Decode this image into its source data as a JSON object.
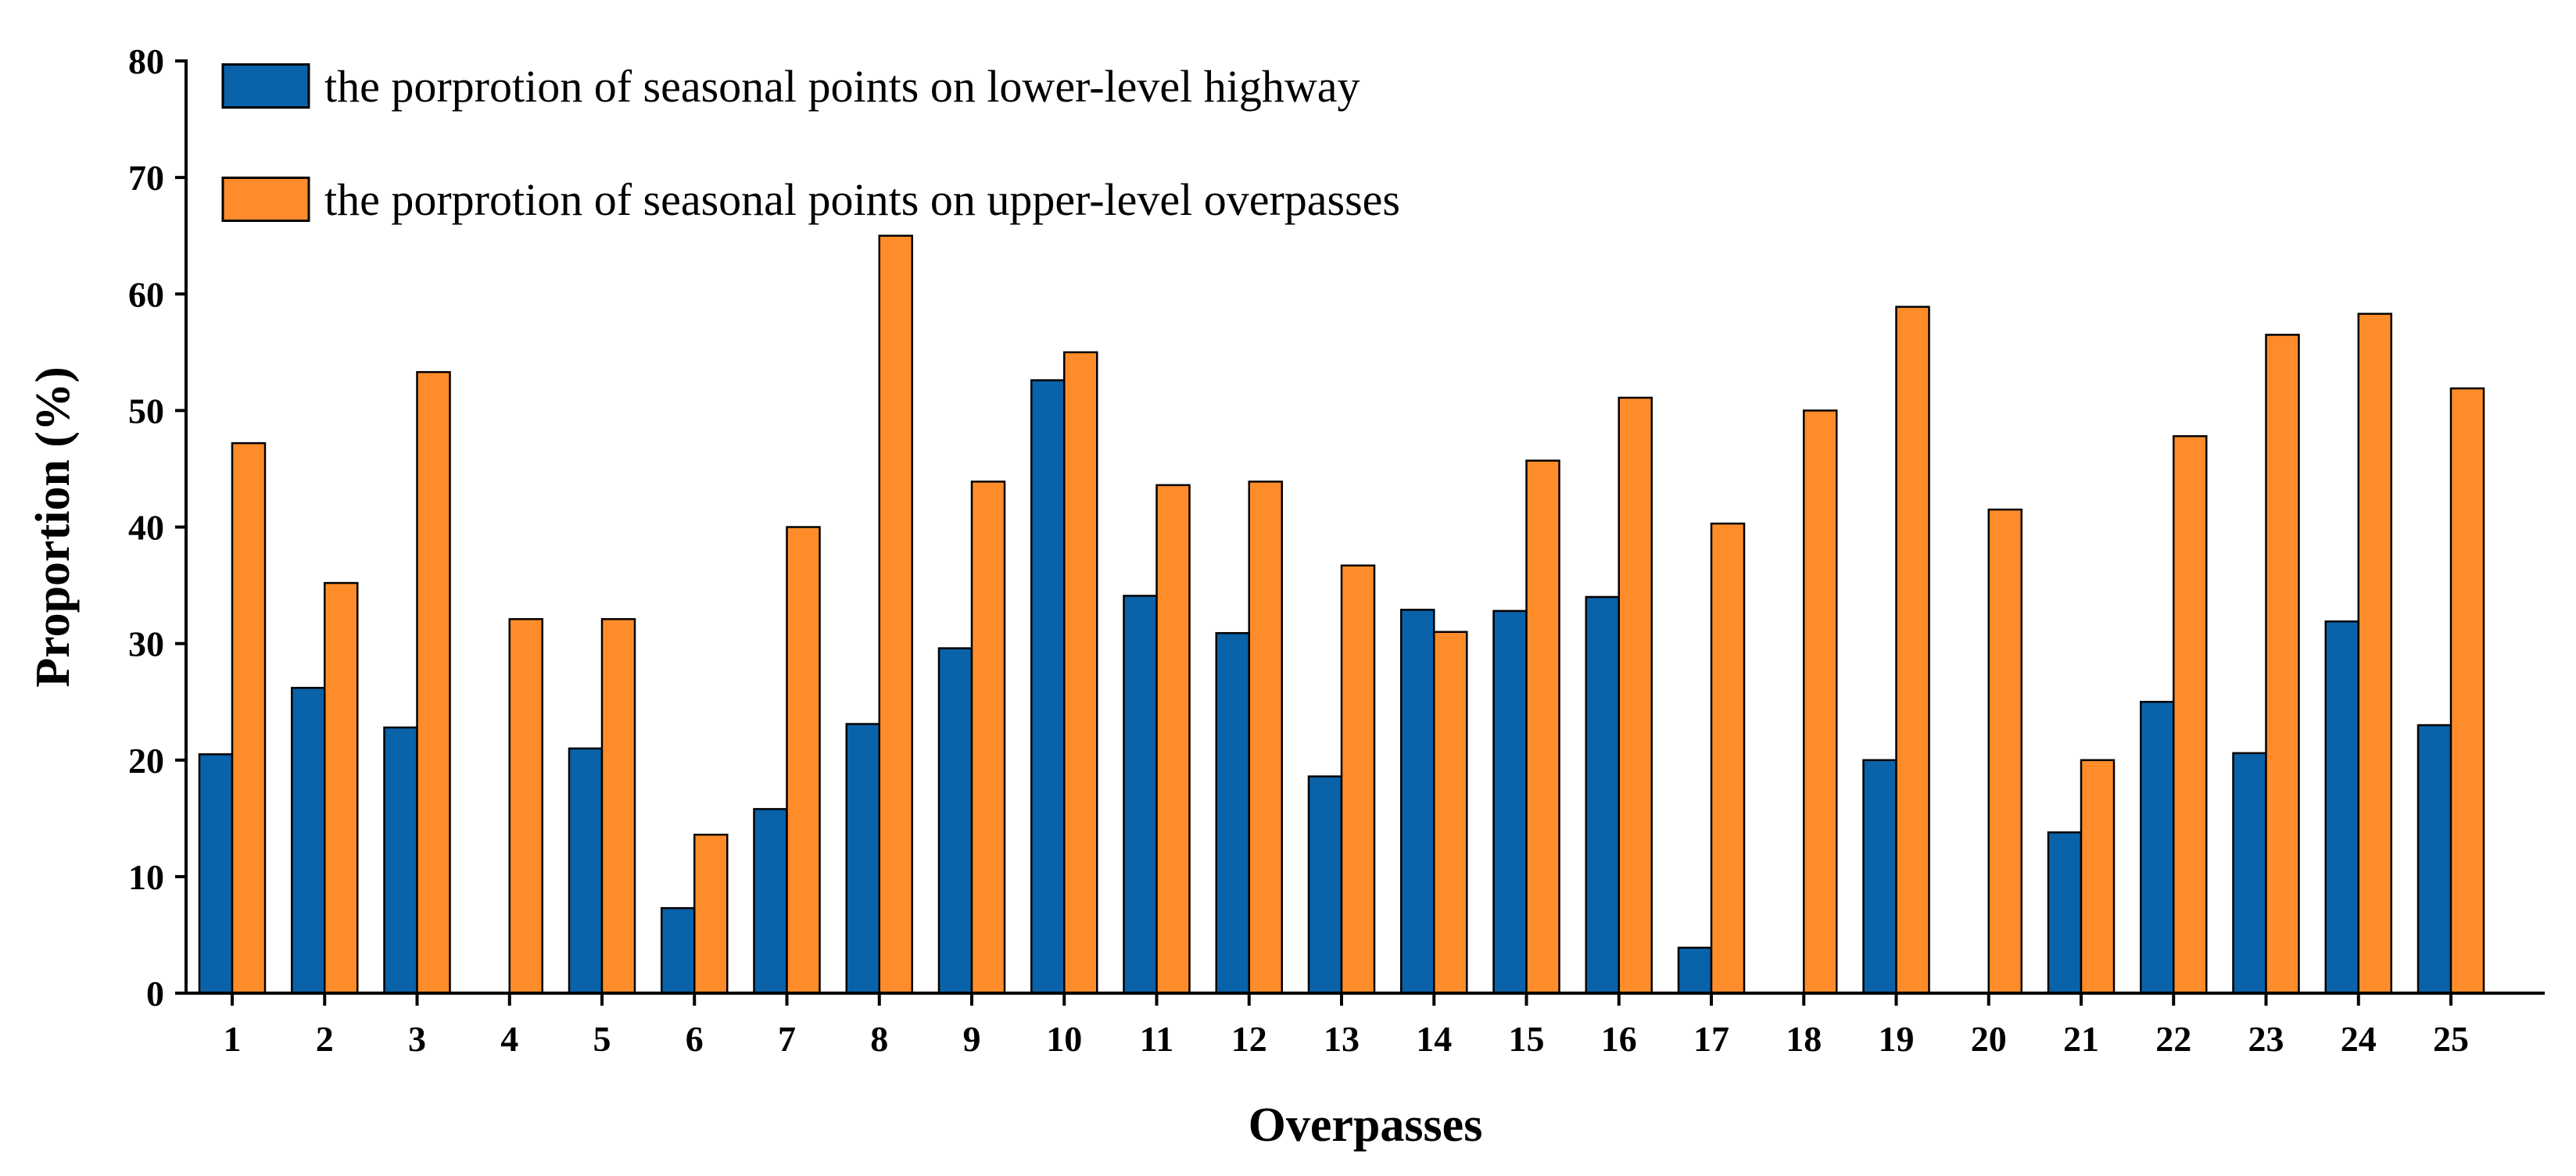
{
  "chart_data": {
    "type": "bar",
    "title": "",
    "xlabel": "Overpasses",
    "ylabel": "Proportion (%)",
    "ylim": [
      0,
      80
    ],
    "yticks": [
      0,
      10,
      20,
      30,
      40,
      50,
      60,
      70,
      80
    ],
    "grid": false,
    "legend_position": "top-left",
    "categories": [
      "1",
      "2",
      "3",
      "4",
      "5",
      "6",
      "7",
      "8",
      "9",
      "10",
      "11",
      "12",
      "13",
      "14",
      "15",
      "16",
      "17",
      "18",
      "19",
      "20",
      "21",
      "22",
      "23",
      "24",
      "25"
    ],
    "series": [
      {
        "name": "the porprotion of seasonal points on lower-level highway",
        "color": "#0a62a8",
        "values": [
          20.5,
          26.2,
          22.8,
          0,
          21.0,
          7.3,
          15.8,
          23.1,
          29.6,
          52.6,
          34.1,
          30.9,
          18.6,
          32.9,
          32.8,
          34.0,
          3.9,
          0,
          20.0,
          0,
          13.8,
          25.0,
          20.6,
          31.9,
          23.0
        ]
      },
      {
        "name": "the porprotion of seasonal points on upper-level overpasses",
        "color": "#ff8c2a",
        "values": [
          47.2,
          35.2,
          53.3,
          32.1,
          32.1,
          13.6,
          40.0,
          65.0,
          43.9,
          55.0,
          43.6,
          43.9,
          36.7,
          31.0,
          45.7,
          51.1,
          40.3,
          50.0,
          58.9,
          41.5,
          20.0,
          47.8,
          56.5,
          58.3,
          51.9
        ]
      }
    ]
  }
}
